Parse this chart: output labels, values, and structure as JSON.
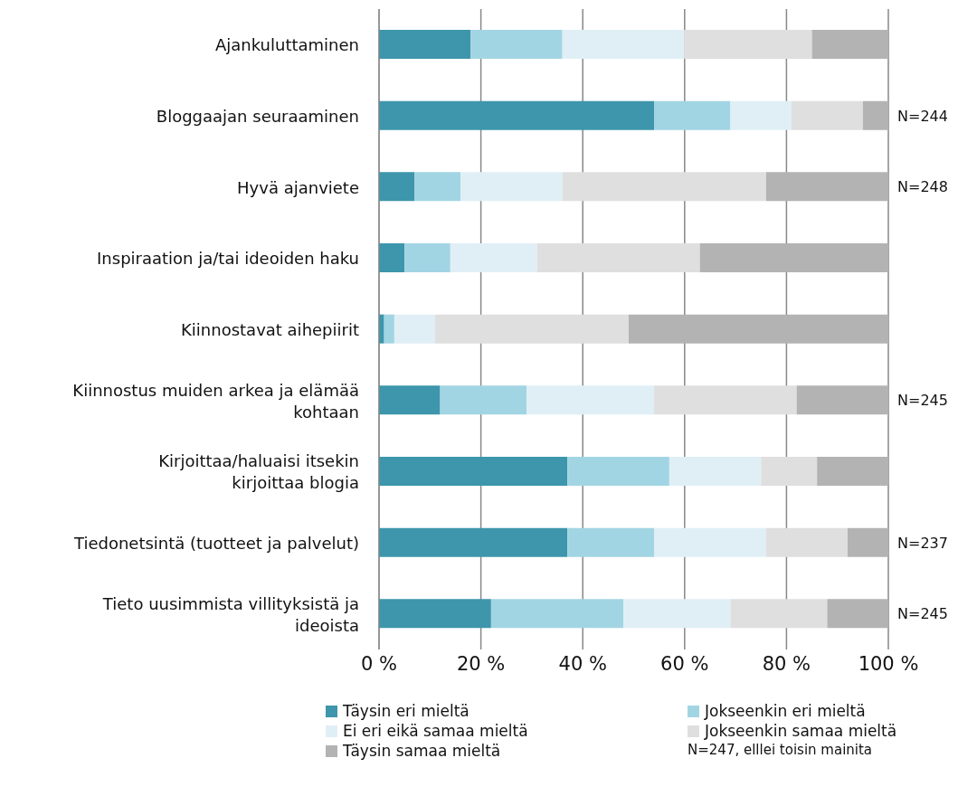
{
  "chart_data": {
    "type": "bar",
    "orientation": "horizontal",
    "stacked": true,
    "categories": [
      "Ajankuluttaminen",
      "Bloggaajan seuraaminen",
      "Hyvä ajanviete",
      "Inspiraation ja/tai ideoiden haku",
      "Kiinnostavat aihepiirit",
      "Kiinnostus muiden arkea ja elämää kohtaan",
      "Kirjoittaa/haluaisi itsekin kirjoittaa blogia",
      "Tiedonetsintä (tuotteet ja palvelut)",
      "Tieto uusimmista villityksistä ja ideoista"
    ],
    "series": [
      {
        "name": "Täysin eri mieltä",
        "color": "#3d96ab",
        "values": [
          18,
          54,
          7,
          5,
          1,
          12,
          37,
          37,
          22
        ]
      },
      {
        "name": "Jokseenkin eri mieltä",
        "color": "#a2d5e3",
        "values": [
          18,
          15,
          9,
          9,
          2,
          17,
          20,
          17,
          26
        ]
      },
      {
        "name": "Ei eri eikä samaa mieltä",
        "color": "#e0eff6",
        "values": [
          24,
          12,
          20,
          17,
          8,
          25,
          18,
          22,
          21
        ]
      },
      {
        "name": "Jokseenkin samaa mieltä",
        "color": "#dfdfdf",
        "values": [
          25,
          14,
          40,
          32,
          38,
          28,
          11,
          16,
          19
        ]
      },
      {
        "name": "Täysin samaa mieltä",
        "color": "#b3b3b3",
        "values": [
          15,
          5,
          24,
          37,
          51,
          18,
          14,
          8,
          12
        ]
      }
    ],
    "xlim": [
      0,
      100
    ],
    "xticks": [
      {
        "value": 0,
        "label": "0 %"
      },
      {
        "value": 20,
        "label": "20 %"
      },
      {
        "value": 40,
        "label": "40 %"
      },
      {
        "value": 60,
        "label": "60 %"
      },
      {
        "value": 80,
        "label": "80 %"
      },
      {
        "value": 100,
        "label": "100 %"
      }
    ],
    "grid": "x",
    "legend": "bottom",
    "annotations": [
      "N=244",
      "N=248",
      "N=245",
      "N=237",
      "N=245",
      "N=247, elllei toisin mainita"
    ]
  }
}
